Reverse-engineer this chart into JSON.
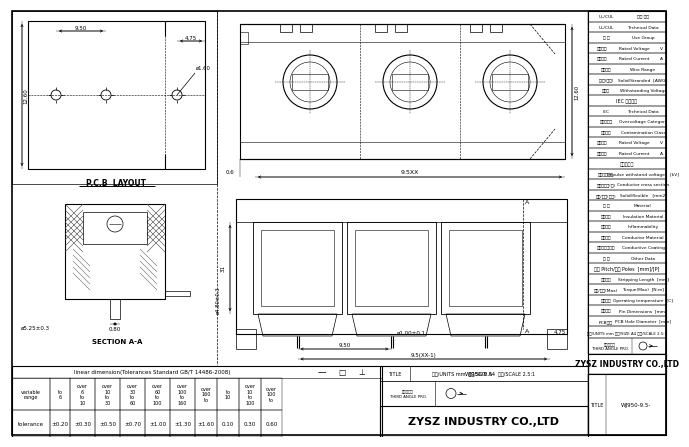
{
  "bg_color": "#ffffff",
  "line_color": "#000000",
  "company": "ZYSZ INDUSTRY CO.,LTD",
  "part_title": "WJ950-9.5-",
  "right_rows": [
    [
      "UL/CUL",
      "技术 参数"
    ],
    [
      "UL/CUL",
      "Technical Data"
    ],
    [
      "用 途",
      "Use Group"
    ],
    [
      "额定电压",
      "Rated Voltage",
      "V"
    ],
    [
      "额定电流",
      "Rated Current",
      "A"
    ],
    [
      "接线范围",
      "Wire Range"
    ],
    [
      "软/硬(线径)",
      "Solid/Stranded  [AWG]"
    ],
    [
      "耐电压",
      "Withstanding Voltage"
    ],
    [
      "IEC 技术参数",
      ""
    ],
    [
      "IEC",
      "Technical Data"
    ],
    [
      "过电压类别",
      "Overvoltage Category"
    ],
    [
      "污染等级",
      "Contamination Class"
    ],
    [
      "额定电压",
      "Rated Voltage",
      "V"
    ],
    [
      "额定电流",
      "Rated Current",
      "A"
    ],
    [
      "脉冲耐电压",
      ""
    ],
    [
      "冲击耐受电压",
      "Impulse withstand voltages  [kV]"
    ],
    [
      "导线截面积(可)",
      "Conductor cross section"
    ],
    [
      "柔性/芯线(软线)",
      "Solid/flexible   [mm2]"
    ],
    [
      "材 料",
      "Material"
    ],
    [
      "绝缘材料",
      "Insulation Material"
    ],
    [
      "阻燃性能",
      "Inflammability"
    ],
    [
      "导体材料",
      "Conductor Material"
    ],
    [
      "导电体表面镀层",
      "Conductive Coating"
    ],
    [
      "其 他",
      "Other Data"
    ],
    [
      "间距 Pitch/极数 Poles  [mm]/[P]",
      ""
    ],
    [
      "剥线长度",
      "Stripping Length  [mm]"
    ],
    [
      "螺钉/扭矩(Max)",
      "Torque(Max)  [N.m]"
    ],
    [
      "工作温度",
      "Operating temperature  [C]"
    ],
    [
      "引脚尺寸",
      "Pin Dimensions  [mm]"
    ],
    [
      "PCB孔径",
      "PCB Hole Diameter  [mm]"
    ]
  ]
}
